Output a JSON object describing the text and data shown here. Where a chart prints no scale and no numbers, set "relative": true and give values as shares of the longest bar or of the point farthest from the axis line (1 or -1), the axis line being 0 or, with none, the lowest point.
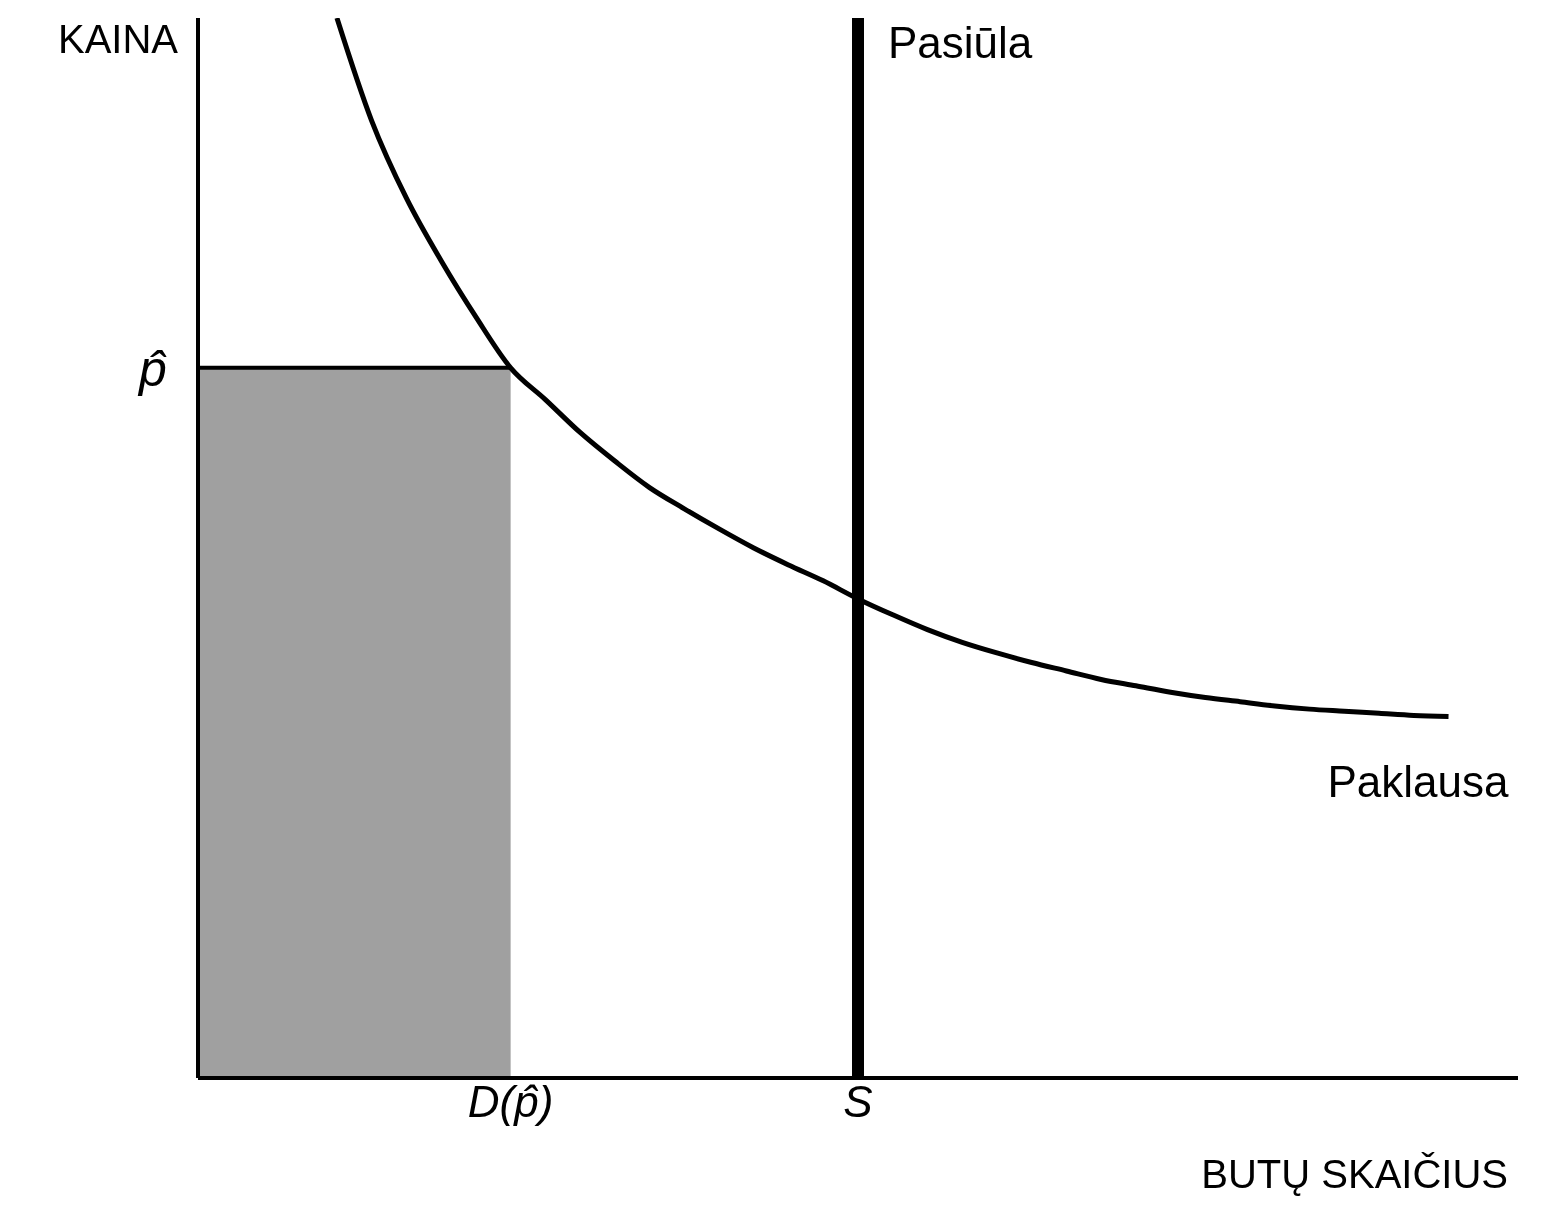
{
  "chart_data": {
    "type": "line",
    "relative": true,
    "ylabel": "KAINA",
    "xlabel": "BUTŲ SKAIČIUS",
    "categories": [
      null,
      null,
      null,
      null,
      null,
      null,
      null,
      null,
      null,
      "D(p̂)",
      null,
      null,
      null,
      null,
      null,
      null,
      null,
      null,
      null,
      "S",
      null,
      null,
      null,
      null,
      null,
      null,
      null,
      null,
      null,
      null,
      null,
      null,
      null,
      null,
      null,
      null,
      null,
      null,
      null
    ],
    "series": [
      {
        "type": "area",
        "color": "#a0a0a0",
        "values": [
          0.67,
          0.67,
          0.67,
          0.67,
          0.67,
          0.67,
          0.67,
          0.67,
          0.67,
          0.67,
          null,
          null,
          null,
          null,
          null,
          null,
          null,
          null,
          null,
          null,
          null,
          null,
          null,
          null,
          null,
          null,
          null,
          null,
          null,
          null,
          null,
          null,
          null,
          null,
          null,
          null,
          null,
          null,
          null
        ]
      },
      {
        "name": "Paklausa",
        "color": "#000000",
        "values": [
          null,
          null,
          null,
          null,
          1.0,
          0.903,
          0.83,
          0.771,
          0.718,
          0.67,
          0.64,
          0.609,
          0.582,
          0.557,
          0.537,
          0.518,
          0.5,
          0.484,
          0.469,
          0.452,
          0.437,
          0.423,
          0.411,
          0.401,
          0.392,
          0.384,
          0.376,
          0.37,
          0.364,
          0.359,
          0.355,
          0.351,
          0.348,
          0.346,
          0.344,
          0.342,
          0.341,
          null,
          null
        ]
      }
    ],
    "ref_lines": [
      {
        "axis": "x",
        "value": "S",
        "label": "Pasiūla",
        "color": "#000000"
      }
    ],
    "annotations": [
      "p̂"
    ],
    "legend": false,
    "grid": false,
    "marker": "none"
  }
}
